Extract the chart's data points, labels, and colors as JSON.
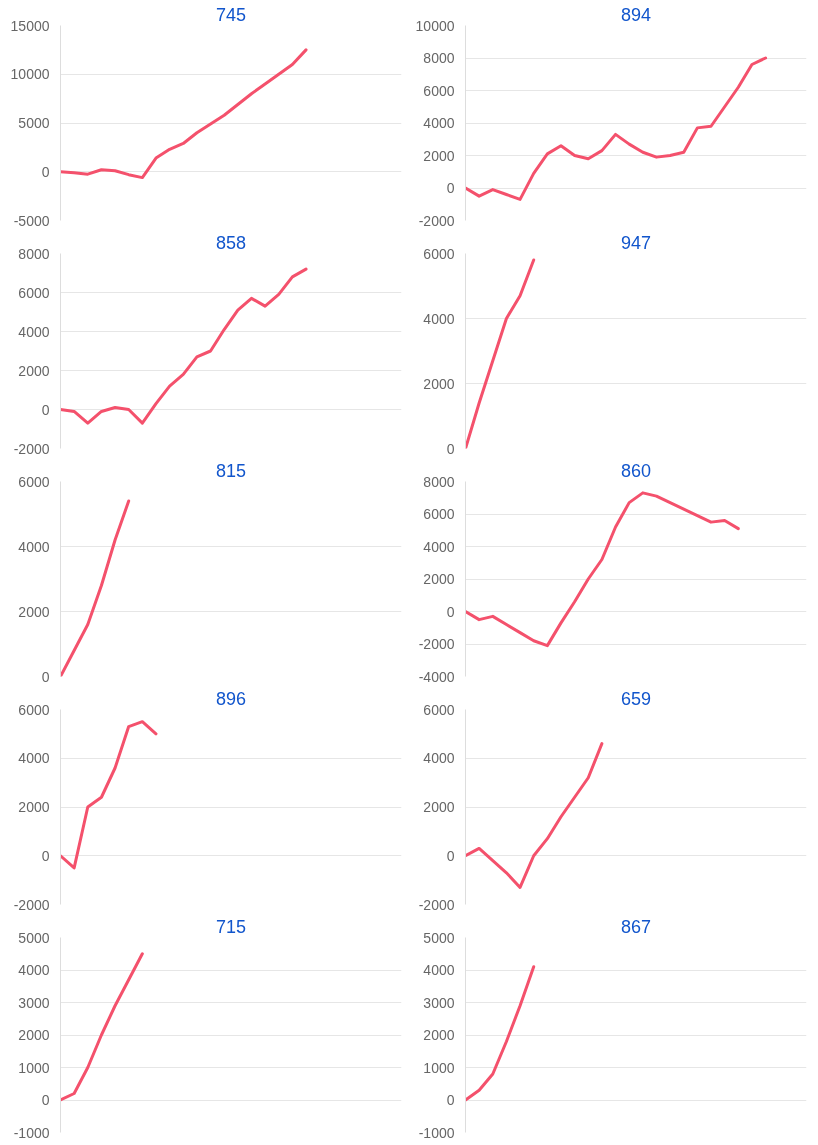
{
  "chart_data": [
    {
      "type": "line",
      "title": "745",
      "categories": [
        null,
        null,
        null,
        null,
        null,
        null,
        null,
        null,
        null,
        null,
        null,
        null,
        null,
        null,
        null,
        null,
        null,
        null,
        null,
        null,
        null,
        null,
        null,
        null,
        null,
        null
      ],
      "values": [
        0,
        -100,
        -250,
        200,
        100,
        -300,
        -600,
        1400,
        2300,
        2900,
        4000,
        4900,
        5800,
        6900,
        8000,
        9000,
        10000,
        11000,
        12500,
        null,
        null,
        null,
        null,
        null,
        null,
        null
      ],
      "color": "#f4516c",
      "ylim": [
        -5000,
        15000
      ],
      "yticks": [
        -5000,
        0,
        5000,
        10000,
        15000
      ],
      "grid": "y",
      "tick_labels": "y"
    },
    {
      "type": "line",
      "title": "894",
      "categories": [
        null,
        null,
        null,
        null,
        null,
        null,
        null,
        null,
        null,
        null,
        null,
        null,
        null,
        null,
        null,
        null,
        null,
        null,
        null,
        null,
        null,
        null,
        null,
        null,
        null,
        null
      ],
      "values": [
        0,
        -500,
        -100,
        -400,
        -700,
        900,
        2100,
        2600,
        2000,
        1800,
        2300,
        3300,
        2700,
        2200,
        1900,
        2000,
        2200,
        3700,
        3800,
        5000,
        6200,
        7600,
        8000,
        null,
        null,
        null
      ],
      "color": "#f4516c",
      "ylim": [
        -2000,
        10000
      ],
      "yticks": [
        -2000,
        0,
        2000,
        4000,
        6000,
        8000,
        10000
      ],
      "grid": "y",
      "tick_labels": "y"
    },
    {
      "type": "line",
      "title": "858",
      "categories": [
        null,
        null,
        null,
        null,
        null,
        null,
        null,
        null,
        null,
        null,
        null,
        null,
        null,
        null,
        null,
        null,
        null,
        null,
        null,
        null,
        null,
        null,
        null,
        null,
        null,
        null
      ],
      "values": [
        0,
        -100,
        -700,
        -100,
        100,
        0,
        -700,
        300,
        1200,
        1800,
        2700,
        3000,
        4100,
        5100,
        5700,
        5300,
        5900,
        6800,
        7200,
        null,
        null,
        null,
        null,
        null,
        null,
        null
      ],
      "color": "#f4516c",
      "ylim": [
        -2000,
        8000
      ],
      "yticks": [
        -2000,
        0,
        2000,
        4000,
        6000,
        8000
      ],
      "grid": "y",
      "tick_labels": "y"
    },
    {
      "type": "line",
      "title": "947",
      "categories": [
        null,
        null,
        null,
        null,
        null,
        null,
        null,
        null,
        null,
        null,
        null,
        null,
        null,
        null,
        null,
        null,
        null,
        null,
        null,
        null,
        null,
        null,
        null,
        null,
        null,
        null
      ],
      "values": [
        0,
        1400,
        2700,
        4000,
        4700,
        5800,
        null,
        null,
        null,
        null,
        null,
        null,
        null,
        null,
        null,
        null,
        null,
        null,
        null,
        null,
        null,
        null,
        null,
        null,
        null,
        null
      ],
      "color": "#f4516c",
      "ylim": [
        0,
        6000
      ],
      "yticks": [
        0,
        2000,
        4000,
        6000
      ],
      "grid": "y",
      "tick_labels": "y"
    },
    {
      "type": "line",
      "title": "815",
      "categories": [
        null,
        null,
        null,
        null,
        null,
        null,
        null,
        null,
        null,
        null,
        null,
        null,
        null,
        null,
        null,
        null,
        null,
        null,
        null,
        null,
        null,
        null,
        null,
        null,
        null,
        null
      ],
      "values": [
        0,
        800,
        1600,
        2800,
        4200,
        5400,
        null,
        null,
        null,
        null,
        null,
        null,
        null,
        null,
        null,
        null,
        null,
        null,
        null,
        null,
        null,
        null,
        null,
        null,
        null,
        null
      ],
      "color": "#f4516c",
      "ylim": [
        0,
        6000
      ],
      "yticks": [
        0,
        2000,
        4000,
        6000
      ],
      "grid": "y",
      "tick_labels": "y"
    },
    {
      "type": "line",
      "title": "860",
      "categories": [
        null,
        null,
        null,
        null,
        null,
        null,
        null,
        null,
        null,
        null,
        null,
        null,
        null,
        null,
        null,
        null,
        null,
        null,
        null,
        null,
        null,
        null,
        null,
        null,
        null,
        null
      ],
      "values": [
        0,
        -500,
        -300,
        -800,
        -1300,
        -1800,
        -2100,
        -700,
        600,
        2000,
        3200,
        5200,
        6700,
        7300,
        7100,
        6700,
        6300,
        5900,
        5500,
        5600,
        5100,
        null,
        null,
        null,
        null,
        null
      ],
      "color": "#f4516c",
      "ylim": [
        -4000,
        8000
      ],
      "yticks": [
        -4000,
        -2000,
        0,
        2000,
        4000,
        6000,
        8000
      ],
      "grid": "y",
      "tick_labels": "y"
    },
    {
      "type": "line",
      "title": "896",
      "categories": [
        null,
        null,
        null,
        null,
        null,
        null,
        null,
        null,
        null,
        null,
        null,
        null,
        null,
        null,
        null,
        null,
        null,
        null,
        null,
        null,
        null,
        null,
        null,
        null,
        null,
        null
      ],
      "values": [
        0,
        -500,
        2000,
        2400,
        3600,
        5300,
        5500,
        5000,
        null,
        null,
        null,
        null,
        null,
        null,
        null,
        null,
        null,
        null,
        null,
        null,
        null,
        null,
        null,
        null,
        null,
        null
      ],
      "color": "#f4516c",
      "ylim": [
        -2000,
        6000
      ],
      "yticks": [
        -2000,
        0,
        2000,
        4000,
        6000
      ],
      "grid": "y",
      "tick_labels": "y"
    },
    {
      "type": "line",
      "title": "659",
      "categories": [
        null,
        null,
        null,
        null,
        null,
        null,
        null,
        null,
        null,
        null,
        null,
        null,
        null,
        null,
        null,
        null,
        null,
        null,
        null,
        null,
        null,
        null,
        null,
        null,
        null,
        null
      ],
      "values": [
        0,
        300,
        -200,
        -700,
        -1300,
        0,
        700,
        1600,
        2400,
        3200,
        4600,
        null,
        null,
        null,
        null,
        null,
        null,
        null,
        null,
        null,
        null,
        null,
        null,
        null,
        null,
        null
      ],
      "color": "#f4516c",
      "ylim": [
        -2000,
        6000
      ],
      "yticks": [
        -2000,
        0,
        2000,
        4000,
        6000
      ],
      "grid": "y",
      "tick_labels": "y"
    },
    {
      "type": "line",
      "title": "715",
      "categories": [
        null,
        null,
        null,
        null,
        null,
        null,
        null,
        null,
        null,
        null,
        null,
        null,
        null,
        null,
        null,
        null,
        null,
        null,
        null,
        null,
        null,
        null,
        null,
        null,
        null,
        null
      ],
      "values": [
        0,
        200,
        1000,
        2000,
        2900,
        3700,
        4500,
        null,
        null,
        null,
        null,
        null,
        null,
        null,
        null,
        null,
        null,
        null,
        null,
        null,
        null,
        null,
        null,
        null,
        null,
        null
      ],
      "color": "#f4516c",
      "ylim": [
        -1000,
        5000
      ],
      "yticks": [
        -1000,
        0,
        1000,
        2000,
        3000,
        4000,
        5000
      ],
      "grid": "y",
      "tick_labels": "y"
    },
    {
      "type": "line",
      "title": "867",
      "categories": [
        null,
        null,
        null,
        null,
        null,
        null,
        null,
        null,
        null,
        null,
        null,
        null,
        null,
        null,
        null,
        null,
        null,
        null,
        null,
        null,
        null,
        null,
        null,
        null,
        null,
        null
      ],
      "values": [
        0,
        300,
        800,
        1800,
        2900,
        4100,
        null,
        null,
        null,
        null,
        null,
        null,
        null,
        null,
        null,
        null,
        null,
        null,
        null,
        null,
        null,
        null,
        null,
        null,
        null,
        null
      ],
      "color": "#f4516c",
      "ylim": [
        -1000,
        5000
      ],
      "yticks": [
        -1000,
        0,
        1000,
        2000,
        3000,
        4000,
        5000
      ],
      "grid": "y",
      "tick_labels": "y"
    }
  ]
}
